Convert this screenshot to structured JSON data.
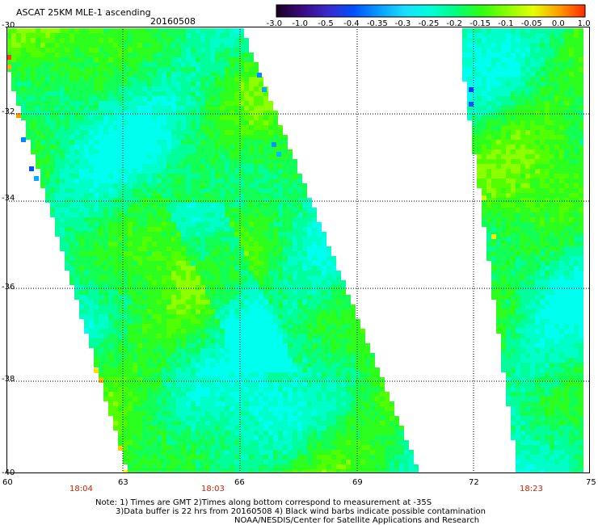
{
  "header": {
    "product": "ASCAT 25KM MLE-1 ascending",
    "date": "20160508"
  },
  "colorbar": {
    "labels": [
      "-3.0",
      "-1.0",
      "-0.5",
      "-0.4",
      "-0.35",
      "-0.3",
      "-0.25",
      "-0.2",
      "-0.15",
      "-0.1",
      "-0.05",
      "0.0",
      "1.0"
    ],
    "colors": [
      "#1a0020",
      "#3a0a80",
      "#3a2acc",
      "#0050ff",
      "#0a9cff",
      "#19e0ff",
      "#00ffd8",
      "#00ff7a",
      "#30ff10",
      "#8cff00",
      "#e6ff00",
      "#ff9a00",
      "#ff2a00"
    ]
  },
  "map": {
    "lat_labels": [
      "-30",
      "-32",
      "-34",
      "-36",
      "-38",
      "-40"
    ],
    "lon_labels": [
      "60",
      "63",
      "66",
      "69",
      "72",
      "75"
    ],
    "swath_times": [
      "18:04",
      "18:03",
      "18:23"
    ]
  },
  "footer": {
    "note_line1": "Note: 1) Times are GMT 2)Times along bottom correspond to measurement at -35S",
    "note_line2": "3)Data buffer is 22 hrs from 20160508 4) Black wind barbs indicate possible contamination",
    "credit": "NOAA/NESDIS/Center for Satellite Applications and Research"
  }
}
